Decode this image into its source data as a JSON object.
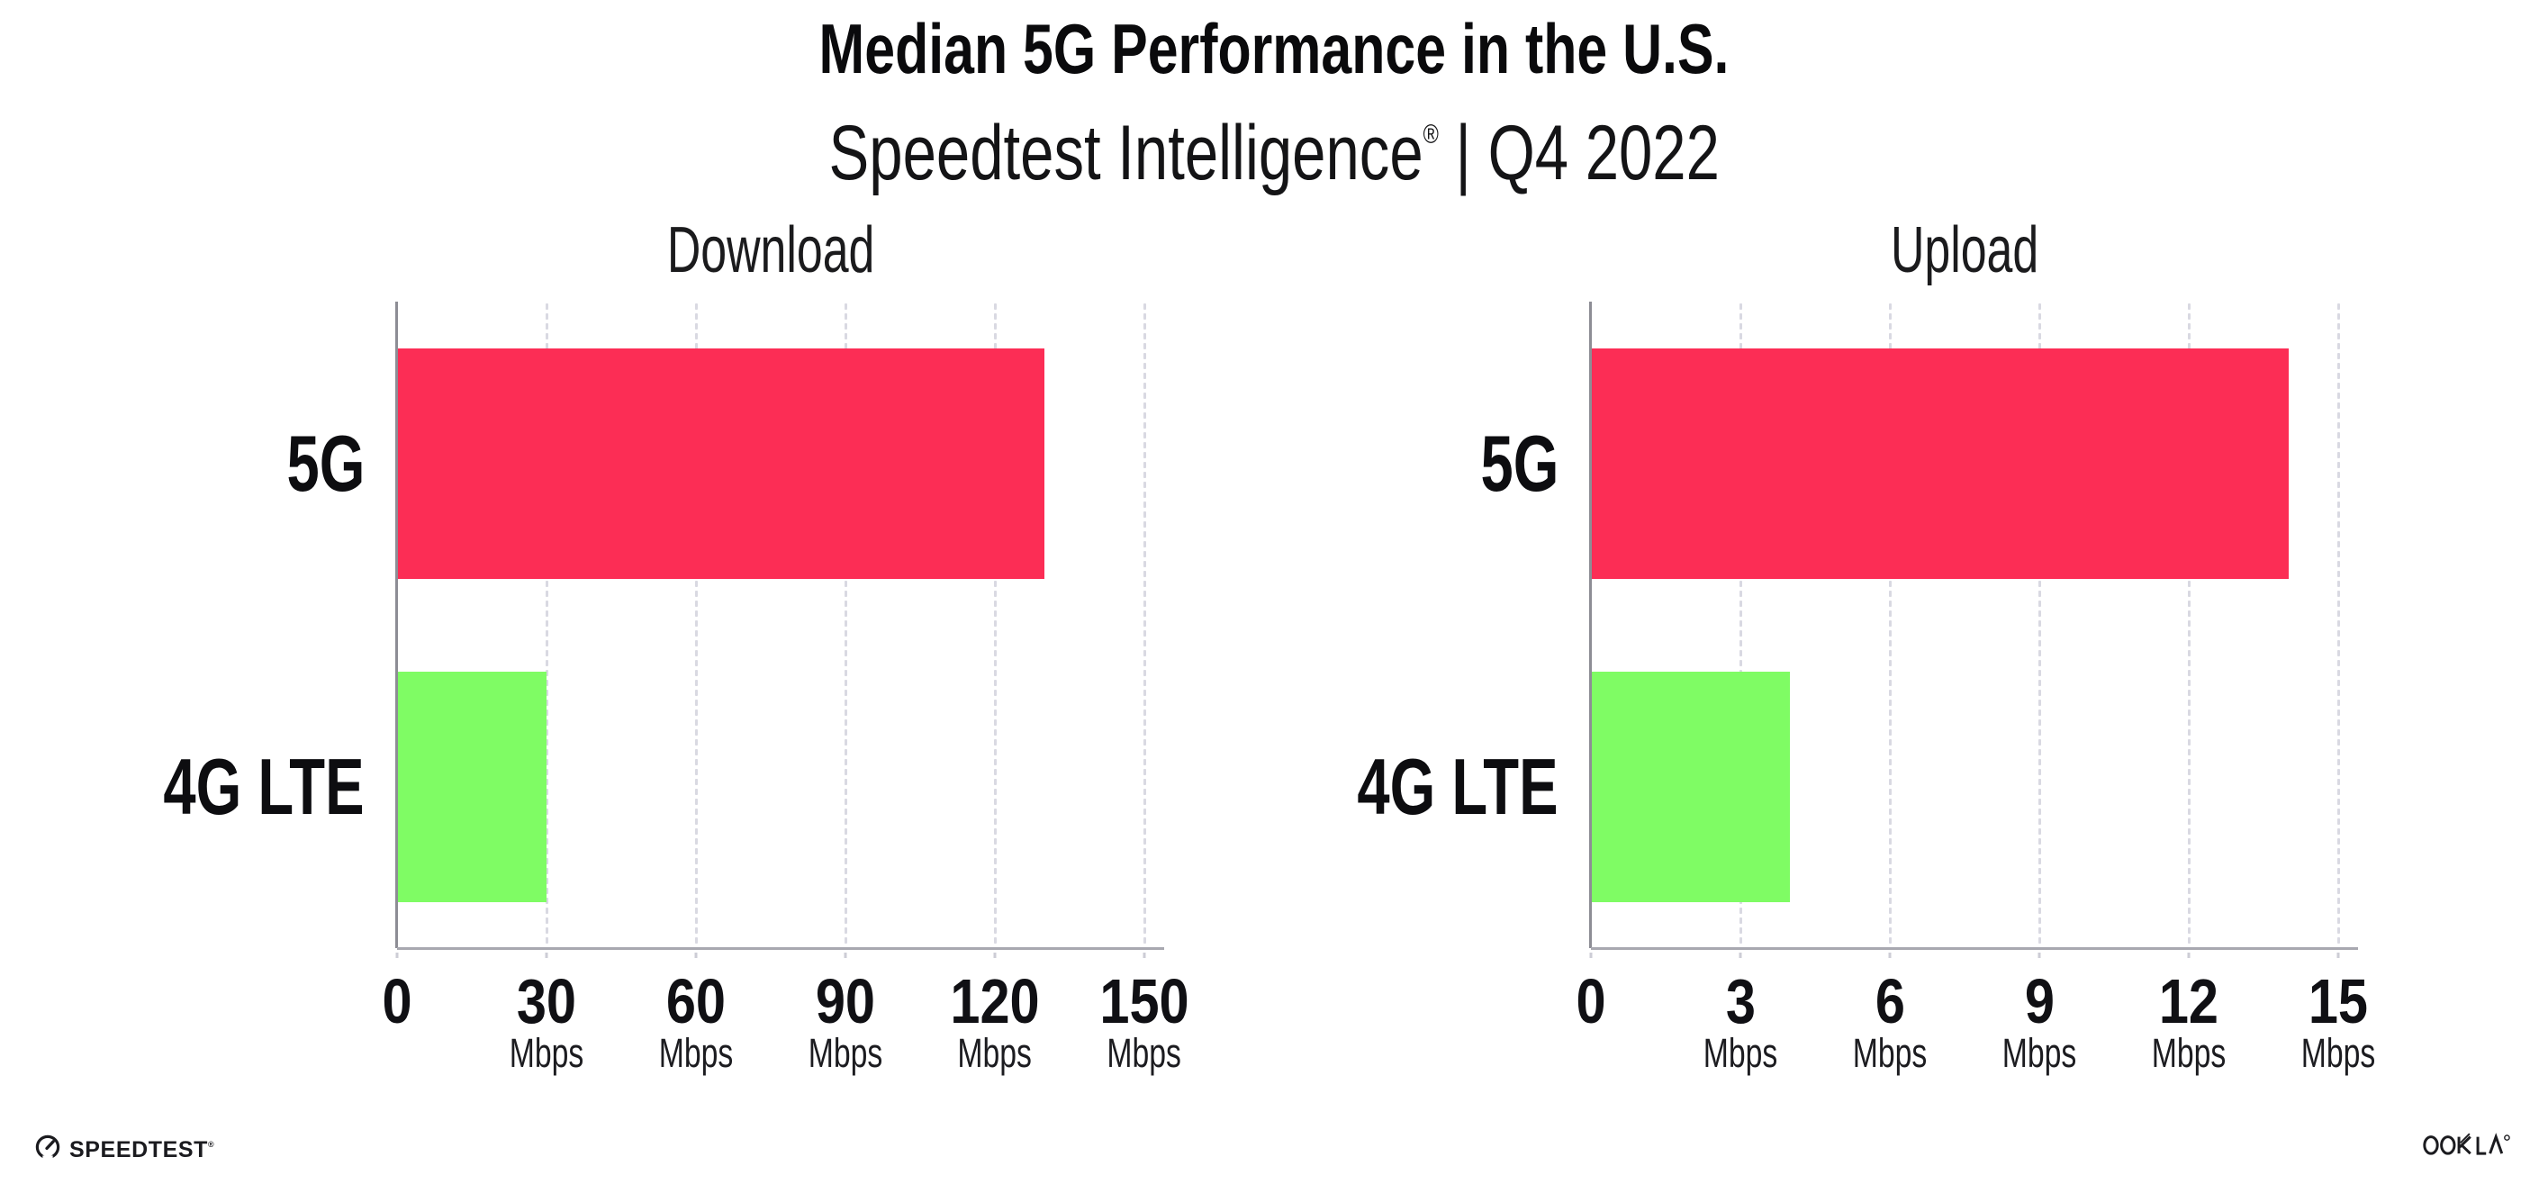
{
  "header": {
    "title": "Median 5G Performance in the U.S.",
    "subtitle_brand": "Speedtest Intelligence",
    "subtitle_registered": "®",
    "subtitle_period": " | Q4 2022"
  },
  "footer": {
    "speedtest_wordmark": "SPEEDTEST",
    "speedtest_registered": "®",
    "ookla_wordmark": "OOKLA"
  },
  "colors": {
    "bar_5g": "#FC2D55",
    "bar_4g_lte": "#7FFC64",
    "x_axis_line": "#a8a8b0",
    "y_axis_line": "#8d8d95",
    "grid_dots": "#d9d9e2",
    "text": "#101014"
  },
  "chart_data": [
    {
      "type": "bar",
      "orientation": "horizontal",
      "title": "Download",
      "categories": [
        "5G",
        "4G LTE"
      ],
      "values": [
        130,
        30
      ],
      "unit": "Mbps",
      "xlim": [
        0,
        150
      ],
      "xticks": [
        0,
        30,
        60,
        90,
        120,
        150
      ],
      "series_colors": [
        "#FC2D55",
        "#7FFC64"
      ],
      "grid": "vertical-dotted",
      "legend": "none"
    },
    {
      "type": "bar",
      "orientation": "horizontal",
      "title": "Upload",
      "categories": [
        "5G",
        "4G LTE"
      ],
      "values": [
        14,
        4
      ],
      "unit": "Mbps",
      "xlim": [
        0,
        15
      ],
      "xticks": [
        0,
        3,
        6,
        9,
        12,
        15
      ],
      "series_colors": [
        "#FC2D55",
        "#7FFC64"
      ],
      "grid": "vertical-dotted",
      "legend": "none"
    }
  ]
}
